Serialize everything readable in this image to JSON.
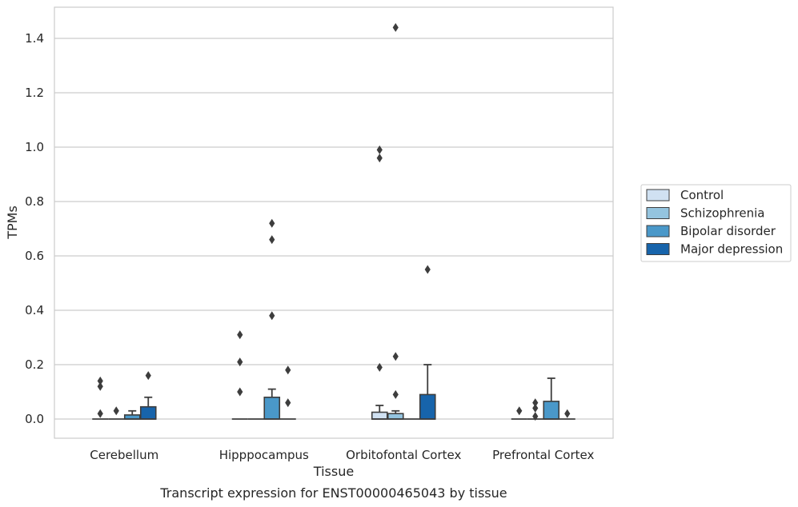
{
  "caption": "Transcript expression for ENST00000465043 by tissue",
  "chart_data": {
    "type": "boxplot",
    "xlabel": "Tissue",
    "ylabel": "TPMs",
    "ylim": [
      -0.07,
      1.52
    ],
    "yticks": [
      "0.0",
      "0.2",
      "0.4",
      "0.6",
      "0.8",
      "1.0",
      "1.2",
      "1.4"
    ],
    "grid": "horizontal",
    "legend_position": "right",
    "categories": [
      "Cerebellum",
      "Hipppocampus",
      "Orbitofontal Cortex",
      "Prefrontal Cortex"
    ],
    "series": [
      {
        "name": "Control",
        "color": "#d0e1f2",
        "boxes": [
          {
            "q1": 0,
            "median": 0,
            "q3": 0,
            "whisker_low": 0,
            "whisker_high": 0,
            "outliers": [
              0.02,
              0.12,
              0.14
            ]
          },
          {
            "q1": 0,
            "median": 0,
            "q3": 0,
            "whisker_low": 0,
            "whisker_high": 0,
            "outliers": [
              0.1,
              0.21,
              0.31
            ]
          },
          {
            "q1": 0,
            "median": 0,
            "q3": 0.025,
            "whisker_low": 0,
            "whisker_high": 0.05,
            "outliers": [
              0.19,
              0.96,
              0.99
            ]
          },
          {
            "q1": 0,
            "median": 0,
            "q3": 0,
            "whisker_low": 0,
            "whisker_high": 0,
            "outliers": [
              0.03
            ]
          }
        ]
      },
      {
        "name": "Schizophrenia",
        "color": "#94c4df",
        "boxes": [
          {
            "q1": 0,
            "median": 0,
            "q3": 0,
            "whisker_low": 0,
            "whisker_high": 0,
            "outliers": [
              0.03
            ]
          },
          {
            "q1": 0,
            "median": 0,
            "q3": 0,
            "whisker_low": 0,
            "whisker_high": 0,
            "outliers": []
          },
          {
            "q1": 0,
            "median": 0,
            "q3": 0.02,
            "whisker_low": 0,
            "whisker_high": 0.03,
            "outliers": [
              0.09,
              0.23,
              1.44
            ]
          },
          {
            "q1": 0,
            "median": 0,
            "q3": 0,
            "whisker_low": 0,
            "whisker_high": 0,
            "outliers": [
              0.01,
              0.04,
              0.06
            ]
          }
        ]
      },
      {
        "name": "Bipolar disorder",
        "color": "#4a98c9",
        "boxes": [
          {
            "q1": 0,
            "median": 0,
            "q3": 0.015,
            "whisker_low": 0,
            "whisker_high": 0.03,
            "outliers": []
          },
          {
            "q1": 0,
            "median": 0,
            "q3": 0.08,
            "whisker_low": 0,
            "whisker_high": 0.11,
            "outliers": [
              0.38,
              0.66,
              0.72
            ]
          },
          {
            "q1": 0,
            "median": 0,
            "q3": 0,
            "whisker_low": 0,
            "whisker_high": 0,
            "outliers": []
          },
          {
            "q1": 0,
            "median": 0,
            "q3": 0.065,
            "whisker_low": 0,
            "whisker_high": 0.15,
            "outliers": []
          }
        ]
      },
      {
        "name": "Major depression",
        "color": "#1764ab",
        "boxes": [
          {
            "q1": 0,
            "median": 0,
            "q3": 0.045,
            "whisker_low": 0,
            "whisker_high": 0.08,
            "outliers": [
              0.16
            ]
          },
          {
            "q1": 0,
            "median": 0,
            "q3": 0,
            "whisker_low": 0,
            "whisker_high": 0,
            "outliers": [
              0.06,
              0.18
            ]
          },
          {
            "q1": 0,
            "median": 0,
            "q3": 0.09,
            "whisker_low": 0,
            "whisker_high": 0.2,
            "outliers": [
              0.55
            ]
          },
          {
            "q1": 0,
            "median": 0,
            "q3": 0,
            "whisker_low": 0,
            "whisker_high": 0,
            "outliers": [
              0.02
            ]
          }
        ]
      }
    ]
  }
}
